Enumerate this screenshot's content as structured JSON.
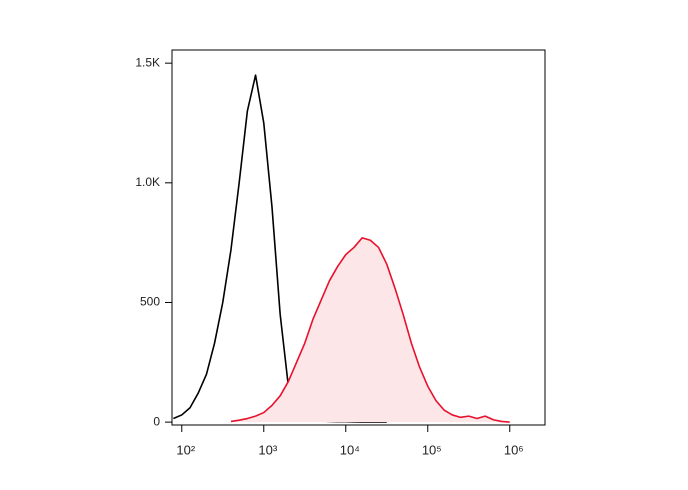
{
  "chart_data": {
    "type": "line",
    "log_x": true,
    "x": [
      79,
      100,
      126,
      158,
      200,
      251,
      316,
      398,
      501,
      631,
      794,
      1000,
      1259,
      1585,
      1995,
      2512,
      3162,
      3981,
      5012,
      6310,
      7943,
      10000,
      12589,
      15849,
      19953,
      25119,
      31623,
      39811,
      50119,
      63096,
      79433,
      100000,
      125893,
      158489,
      199526,
      251189,
      316228,
      398107,
      501187,
      630957,
      794328,
      1000000
    ],
    "series": [
      {
        "color": "#000000",
        "fill": null,
        "values": [
          15,
          30,
          60,
          120,
          200,
          330,
          500,
          720,
          1000,
          1300,
          1450,
          1250,
          900,
          450,
          150,
          40,
          15,
          8,
          5,
          3,
          2,
          2,
          1,
          0,
          0,
          0,
          0,
          null,
          null,
          null,
          null,
          null,
          null,
          null,
          null,
          null,
          null,
          null,
          null,
          null,
          null,
          null
        ]
      },
      {
        "color": "#e8112d",
        "fill": "#fde6e8",
        "values": [
          null,
          null,
          null,
          null,
          null,
          null,
          null,
          3,
          8,
          15,
          25,
          40,
          70,
          110,
          170,
          250,
          330,
          430,
          510,
          590,
          650,
          700,
          730,
          770,
          760,
          730,
          660,
          560,
          450,
          330,
          230,
          150,
          90,
          50,
          30,
          20,
          25,
          15,
          25,
          10,
          3,
          0
        ]
      }
    ],
    "xlim": [
      76,
      2690000
    ],
    "xticks": [
      {
        "value": 100,
        "label": "10²"
      },
      {
        "value": 1000,
        "label": "10³"
      },
      {
        "value": 10000,
        "label": "10⁴"
      },
      {
        "value": 100000,
        "label": "10⁵"
      },
      {
        "value": 1000000,
        "label": "10⁶"
      }
    ],
    "ylim": [
      -12,
      1555
    ],
    "yticks": [
      0,
      500,
      {
        "value": 1000,
        "label": "1.0K"
      },
      {
        "value": 1500,
        "label": "1.5K"
      }
    ]
  }
}
